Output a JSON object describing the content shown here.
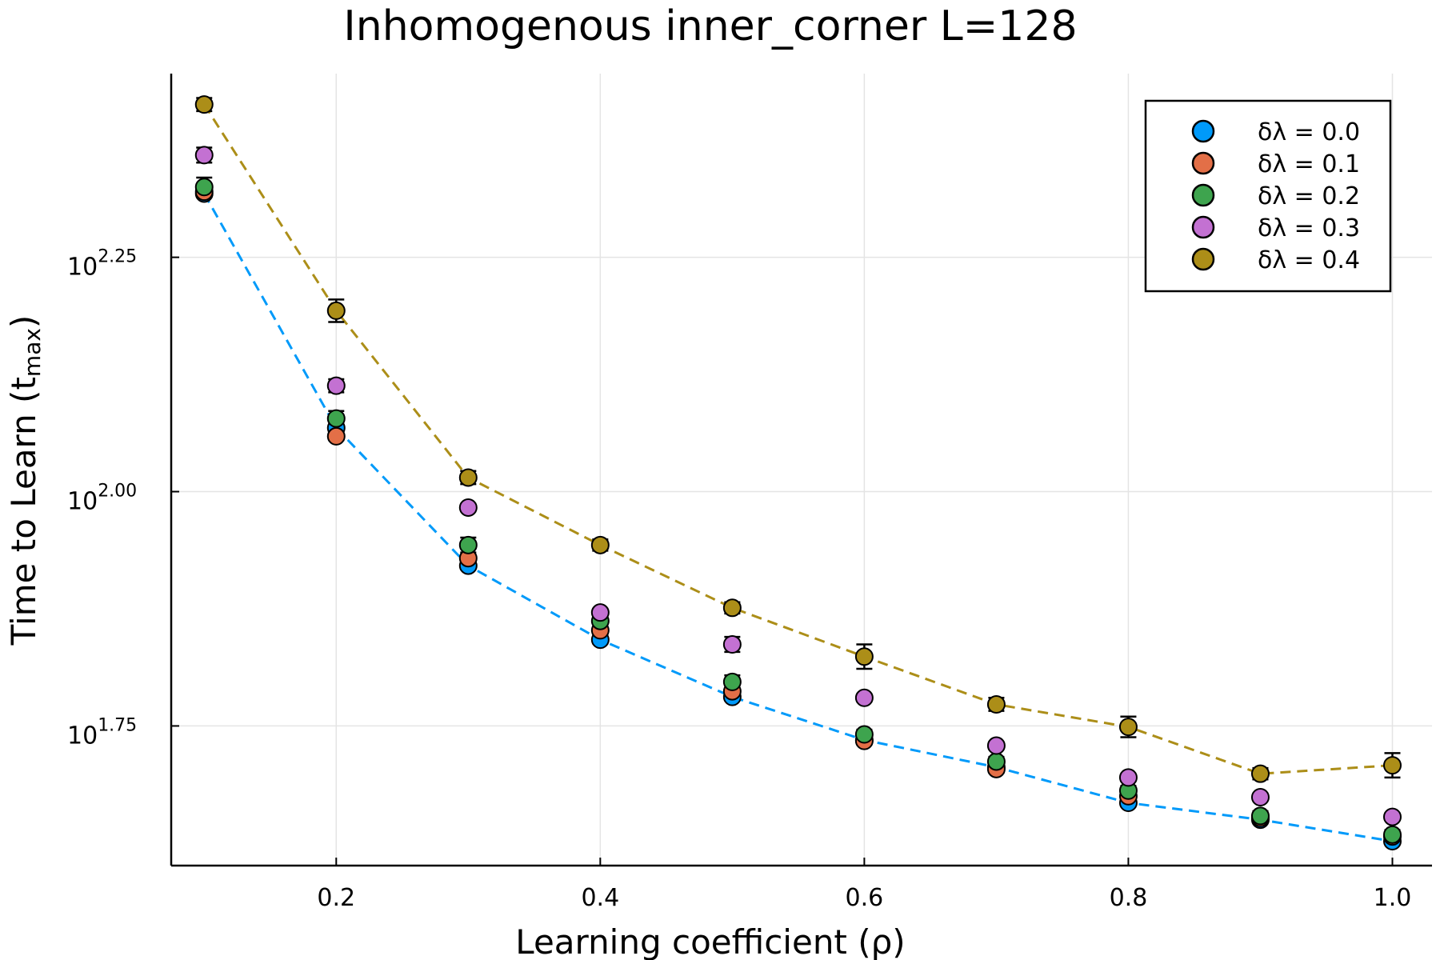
{
  "chart_data": {
    "type": "scatter",
    "title": "Inhomogenous inner_corner L=128",
    "xlabel": "Learning coefficient (ρ)",
    "ylabel": {
      "prefix": "Time to Learn (t",
      "subscript": "max",
      "suffix": ")"
    },
    "xlim": [
      0.075,
      1.03
    ],
    "ylim_log10": [
      1.601,
      2.446
    ],
    "y_scale": "log10",
    "grid": true,
    "legend_position": "top-right",
    "x_ticks": [
      {
        "value": 0.2,
        "label": "0.2"
      },
      {
        "value": 0.4,
        "label": "0.4"
      },
      {
        "value": 0.6,
        "label": "0.6"
      },
      {
        "value": 0.8,
        "label": "0.8"
      },
      {
        "value": 1.0,
        "label": "1.0"
      }
    ],
    "y_ticks": [
      {
        "exp": 1.75,
        "base": "10",
        "exponent": "1.75"
      },
      {
        "exp": 2.0,
        "base": "10",
        "exponent": "2.00"
      },
      {
        "exp": 2.25,
        "base": "10",
        "exponent": "2.25"
      }
    ],
    "x": [
      0.1,
      0.2,
      0.3,
      0.4,
      0.5,
      0.6,
      0.7,
      0.8,
      0.9,
      1.0
    ],
    "series": [
      {
        "name": "δλ = 0.0",
        "color": "#009AFA",
        "dashed_line": true,
        "log10_values": [
          2.318,
          2.068,
          1.921,
          1.842,
          1.781,
          1.735,
          1.706,
          1.668,
          1.65,
          1.627
        ],
        "log10_err": [
          0.004,
          0.004,
          0.004,
          0.004,
          0.004,
          0.004,
          0.004,
          0.004,
          0.004,
          0.004
        ]
      },
      {
        "name": "δλ = 0.1",
        "color": "#E36F47",
        "dashed_line": false,
        "log10_values": [
          2.32,
          2.059,
          1.929,
          1.852,
          1.787,
          1.734,
          1.704,
          1.675,
          1.652,
          1.632
        ],
        "log10_err": [
          0.004,
          0.004,
          0.004,
          0.004,
          0.004,
          0.004,
          0.004,
          0.004,
          0.004,
          0.004
        ]
      },
      {
        "name": "δλ = 0.2",
        "color": "#3EA44E",
        "dashed_line": false,
        "log10_values": [
          2.325,
          2.078,
          1.943,
          1.862,
          1.797,
          1.741,
          1.712,
          1.681,
          1.654,
          1.634
        ],
        "log10_err": [
          0.01,
          0.008,
          0.008,
          0.006,
          0.007,
          0.005,
          0.005,
          0.005,
          0.005,
          0.005
        ]
      },
      {
        "name": "δλ = 0.3",
        "color": "#C371D2",
        "dashed_line": false,
        "log10_values": [
          2.359,
          2.113,
          1.983,
          1.871,
          1.837,
          1.78,
          1.729,
          1.695,
          1.674,
          1.653
        ],
        "log10_err": [
          0.008,
          0.007,
          0.004,
          0.004,
          0.008,
          0.004,
          0.004,
          0.004,
          0.004,
          0.004
        ]
      },
      {
        "name": "δλ = 0.4",
        "color": "#AC8E18",
        "dashed_line": true,
        "log10_values": [
          2.413,
          2.193,
          2.015,
          1.943,
          1.876,
          1.824,
          1.773,
          1.749,
          1.699,
          1.708
        ],
        "log10_err": [
          0.007,
          0.012,
          0.007,
          0.006,
          0.006,
          0.013,
          0.007,
          0.011,
          0.006,
          0.013
        ]
      }
    ]
  }
}
